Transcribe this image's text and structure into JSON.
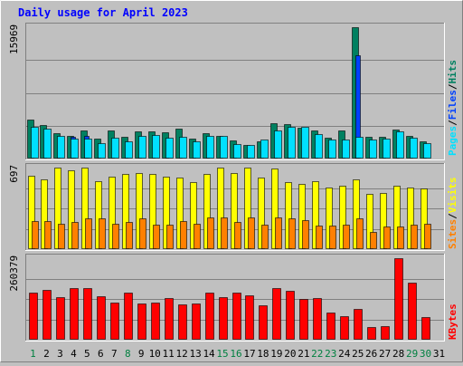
{
  "chart_data": {
    "type": "bar",
    "title": "Daily usage for April 2023",
    "categories": [
      "1",
      "2",
      "3",
      "4",
      "5",
      "6",
      "7",
      "8",
      "9",
      "10",
      "11",
      "12",
      "13",
      "14",
      "15",
      "16",
      "17",
      "18",
      "19",
      "20",
      "21",
      "22",
      "23",
      "24",
      "25",
      "26",
      "27",
      "28",
      "29",
      "30",
      "31"
    ],
    "category_colors": [
      "#008040",
      "#000000",
      "#000000",
      "#000000",
      "#000000",
      "#000000",
      "#000000",
      "#008040",
      "#000000",
      "#000000",
      "#000000",
      "#000000",
      "#000000",
      "#000000",
      "#008040",
      "#008040",
      "#000000",
      "#000000",
      "#000000",
      "#000000",
      "#000000",
      "#008040",
      "#008040",
      "#000000",
      "#000000",
      "#000000",
      "#000000",
      "#000000",
      "#008040",
      "#008040",
      "#000000"
    ],
    "panels": [
      {
        "max_label": "15969",
        "ymax": 15969,
        "series": [
          {
            "name": "Hits",
            "color": "#008060",
            "values": [
              4700,
              4100,
              3100,
              2800,
              3400,
              2400,
              3400,
              2600,
              3300,
              3300,
              3200,
              3600,
              2400,
              3100,
              2800,
              2200,
              1700,
              2100,
              4300,
              4200,
              3700,
              3400,
              2500,
              3400,
              15969,
              2600,
              2600,
              3500,
              2700,
              2100,
              0
            ]
          },
          {
            "name": "Files",
            "color": "#0040ff",
            "values": [
              0,
              0,
              0,
              2600,
              2800,
              0,
              0,
              0,
              0,
              0,
              0,
              0,
              0,
              0,
              0,
              0,
              0,
              0,
              0,
              0,
              0,
              0,
              0,
              0,
              12500,
              0,
              0,
              0,
              0,
              0,
              0
            ]
          },
          {
            "name": "Pages",
            "color": "#00e0ff",
            "values": [
              3800,
              3600,
              2700,
              2400,
              2400,
              1900,
              2500,
              2100,
              2800,
              2900,
              2500,
              2600,
              2100,
              2800,
              2700,
              1800,
              1600,
              2300,
              3400,
              3800,
              3800,
              3000,
              2300,
              2300,
              2600,
              2300,
              2400,
              3300,
              2500,
              1900,
              0
            ]
          }
        ]
      },
      {
        "max_label": "697",
        "ymax": 697,
        "series": [
          {
            "name": "Visits",
            "color": "#ffff00",
            "values": [
              630,
              600,
              700,
              670,
              700,
              580,
              620,
              640,
              650,
              640,
              620,
              610,
              570,
              640,
              700,
              650,
              700,
              610,
              690,
              570,
              560,
              580,
              530,
              540,
              600,
              470,
              480,
              540,
              530,
              520,
              0
            ]
          },
          {
            "name": "Sites",
            "color": "#ff8000",
            "values": [
              240,
              240,
              220,
              230,
              260,
              260,
              220,
              230,
              260,
              210,
              210,
              240,
              220,
              270,
              270,
              230,
              270,
              210,
              270,
              260,
              250,
              200,
              200,
              210,
              260,
              150,
              190,
              190,
              210,
              220,
              0
            ]
          }
        ]
      },
      {
        "max_label": "260379",
        "ymax": 260379,
        "series": [
          {
            "name": "KBytes",
            "color": "#ff0000",
            "values": [
              150000,
              160000,
              135000,
              165000,
              165000,
              138000,
              118000,
              150000,
              115000,
              120000,
              133000,
              112000,
              115000,
              150000,
              135000,
              150000,
              143000,
              110000,
              164000,
              157000,
              130000,
              133000,
              86000,
              75000,
              97000,
              40000,
              43000,
              260379,
              181000,
              72000,
              0
            ]
          }
        ]
      }
    ],
    "legend": {
      "panel1": [
        {
          "label": "Pages",
          "color": "#00e0ff"
        },
        {
          "label": "Files",
          "color": "#0040ff"
        },
        {
          "label": "Hits",
          "color": "#008060"
        }
      ],
      "panel2": [
        {
          "label": "Sites",
          "color": "#ff8000"
        },
        {
          "label": "Visits",
          "color": "#ffff00"
        }
      ],
      "panel3": [
        {
          "label": "KBytes",
          "color": "#ff0000"
        }
      ],
      "separator": "/"
    },
    "grid": true,
    "legend_position": "right (vertical)"
  }
}
